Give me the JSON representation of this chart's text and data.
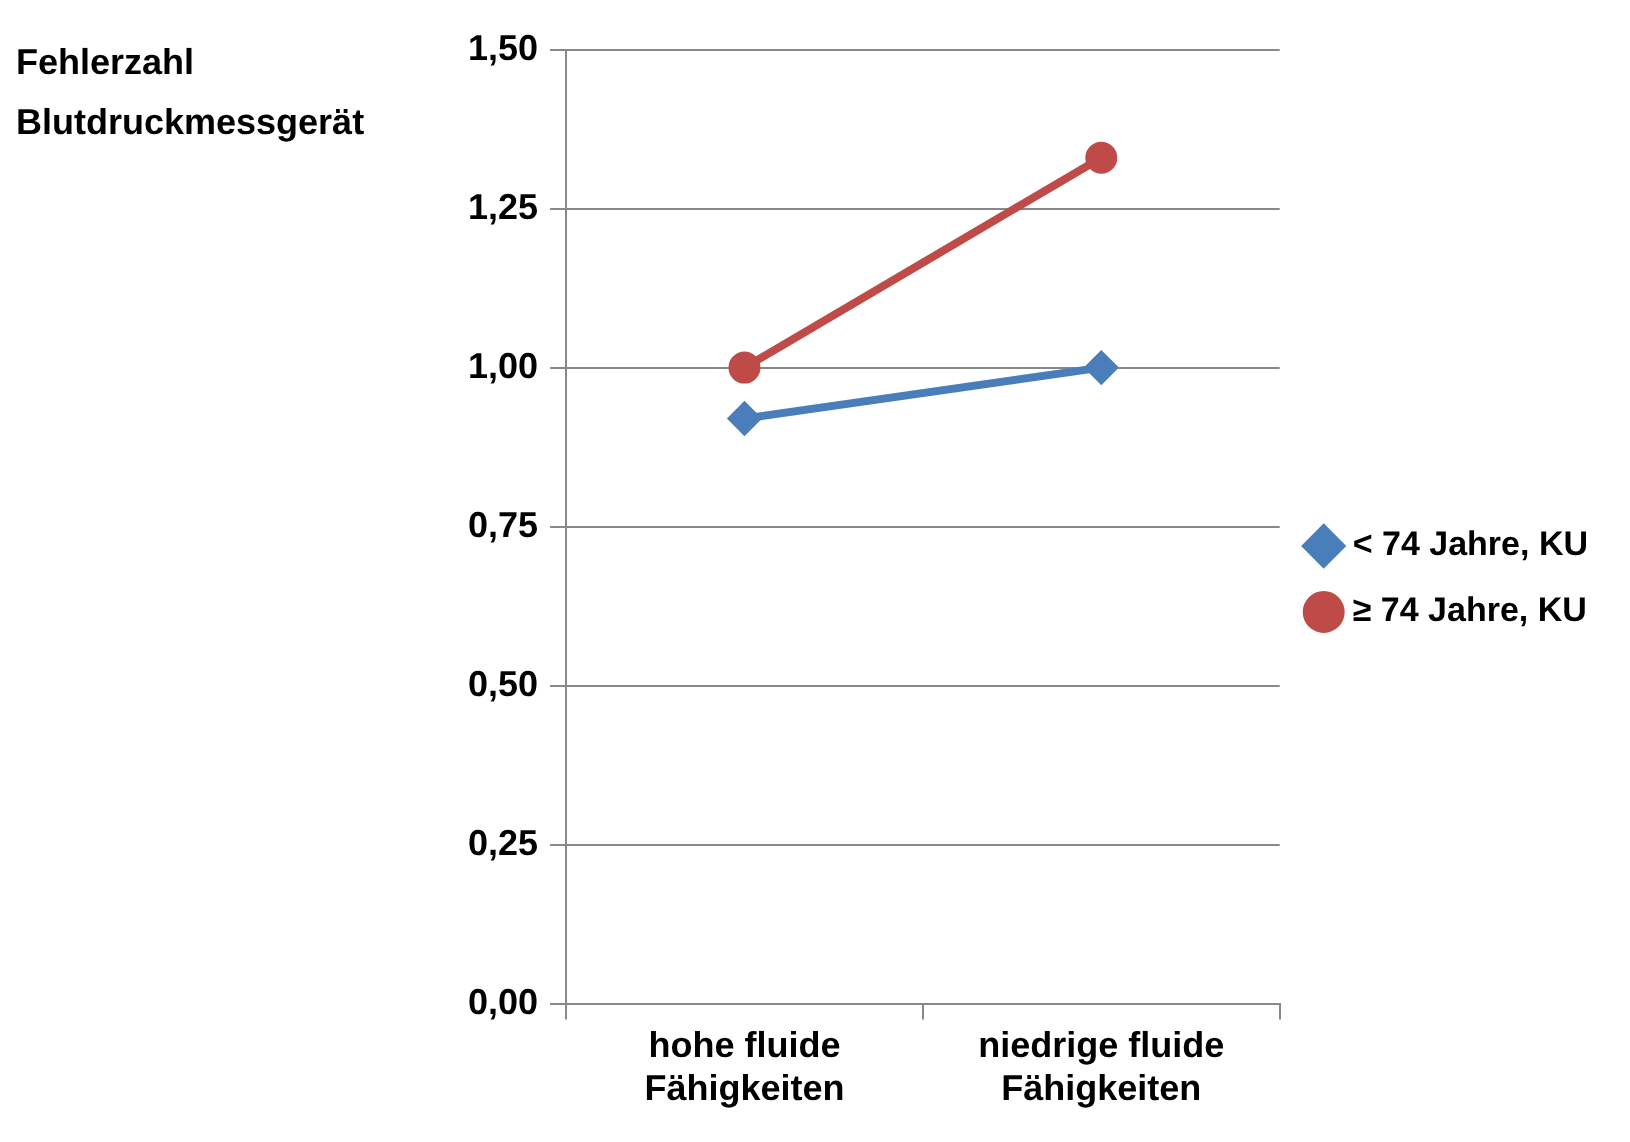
{
  "chart_data": {
    "type": "line",
    "ylabel": "Fehlerzahl Blutdruckmessgerät",
    "categories": [
      "hohe fluide Fähigkeiten",
      "niedrige fluide Fähigkeiten"
    ],
    "series": [
      {
        "name": "< 74 Jahre, KU",
        "color": "#4a7ebb",
        "values": [
          0.92,
          1.0
        ],
        "marker": "diamond"
      },
      {
        "name": "≥ 74 Jahre, KU",
        "color": "#be4b48",
        "values": [
          1.0,
          1.33
        ],
        "marker": "circle"
      }
    ],
    "ylim": [
      0,
      1.5
    ],
    "yticks": [
      {
        "value": 0,
        "label": "0,00"
      },
      {
        "value": 0.25,
        "label": "0,25"
      },
      {
        "value": 0.5,
        "label": "0,50"
      },
      {
        "value": 0.75,
        "label": "0,75"
      },
      {
        "value": 1,
        "label": "1,00"
      },
      {
        "value": 1.25,
        "label": "1,25"
      },
      {
        "value": 1.5,
        "label": "1,50"
      }
    ],
    "grid": "y",
    "legend": "right",
    "line_style": "solid"
  }
}
